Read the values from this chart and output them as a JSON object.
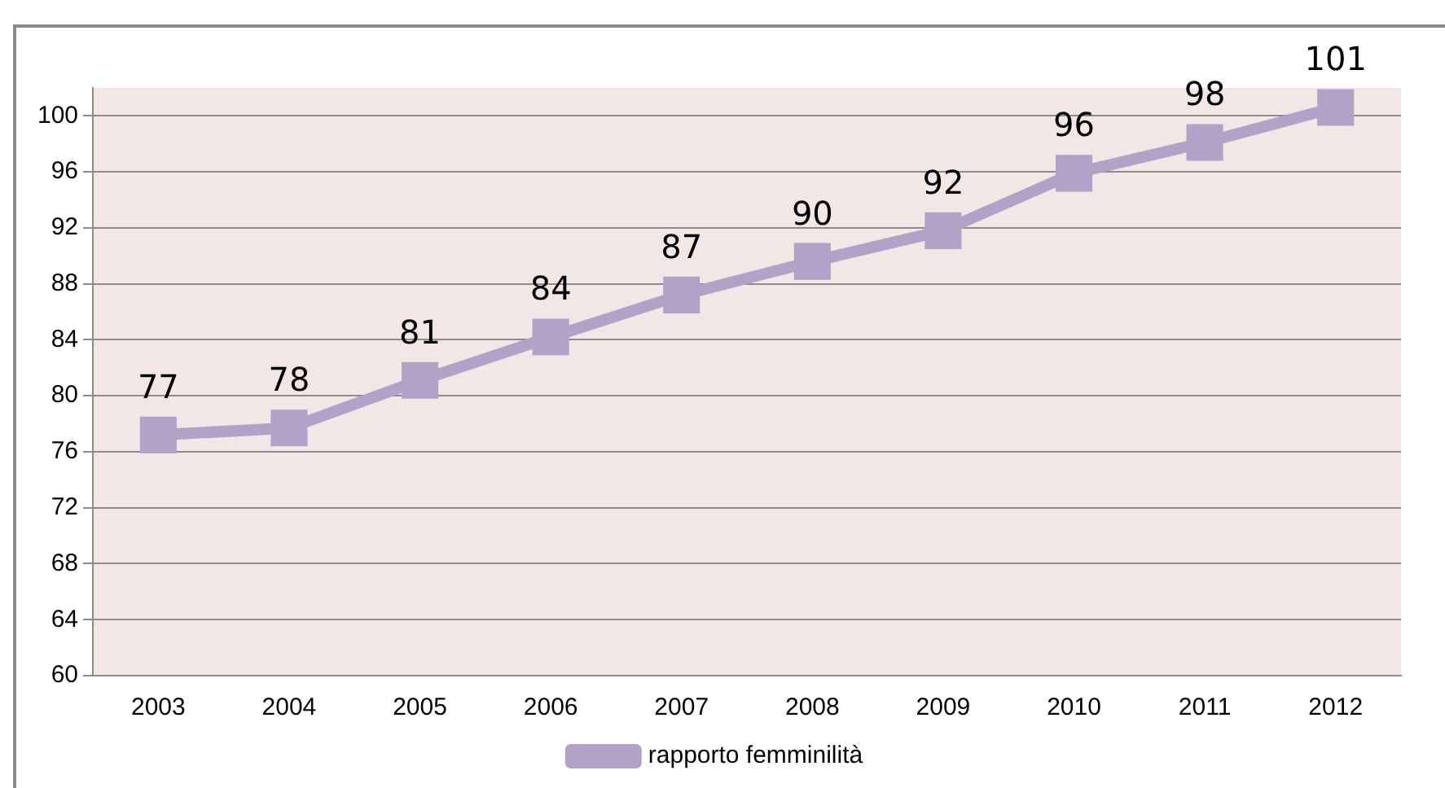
{
  "chart_data": {
    "type": "line",
    "categories": [
      "2003",
      "2004",
      "2005",
      "2006",
      "2007",
      "2008",
      "2009",
      "2010",
      "2011",
      "2012"
    ],
    "series": [
      {
        "name": "rapporto femminilità",
        "color": "#b3a2c7",
        "values": [
          77.2,
          77.7,
          81.1,
          84.2,
          87.2,
          89.6,
          91.8,
          95.9,
          98.1,
          100.6
        ],
        "value_labels": [
          "77",
          "78",
          "81",
          "84",
          "87",
          "90",
          "92",
          "96",
          "98",
          "101"
        ]
      }
    ],
    "ylim": [
      60,
      102
    ],
    "yticks": [
      60,
      64,
      68,
      72,
      76,
      80,
      84,
      88,
      92,
      96,
      100
    ],
    "grid": "y",
    "legend": "bottom",
    "marker": "square",
    "line_style": "solid"
  }
}
